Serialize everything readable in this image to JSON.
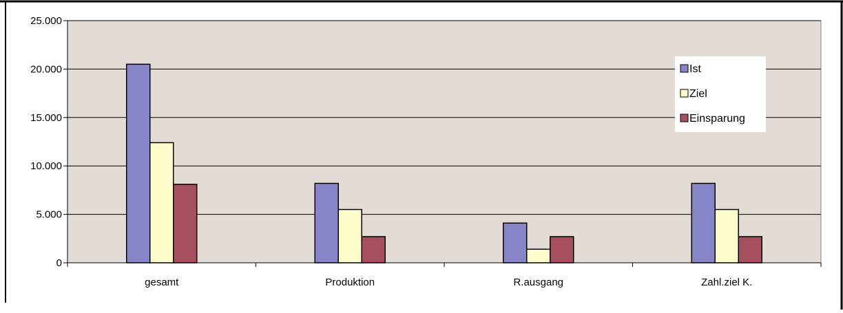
{
  "chart_data": {
    "type": "bar",
    "categories": [
      "gesamt",
      "Produktion",
      "R.ausgang",
      "Zahl.ziel K."
    ],
    "series": [
      {
        "name": "Ist",
        "values": [
          20500,
          8200,
          4100,
          8200
        ],
        "color": "#8884c8"
      },
      {
        "name": "Ziel",
        "values": [
          12400,
          5500,
          1400,
          5500
        ],
        "color": "#fffdcc"
      },
      {
        "name": "Einsparung",
        "values": [
          8100,
          2700,
          2700,
          2700
        ],
        "color": "#a64f5e"
      }
    ],
    "ylim": [
      0,
      25000
    ],
    "yticks": [
      0,
      5000,
      10000,
      15000,
      20000,
      25000
    ],
    "ytick_labels": [
      "0",
      "5.000",
      "10.000",
      "15.000",
      "20.000",
      "25.000"
    ],
    "grid": true,
    "legend_position": "top-right",
    "plot_background": "#e2dbd6"
  }
}
